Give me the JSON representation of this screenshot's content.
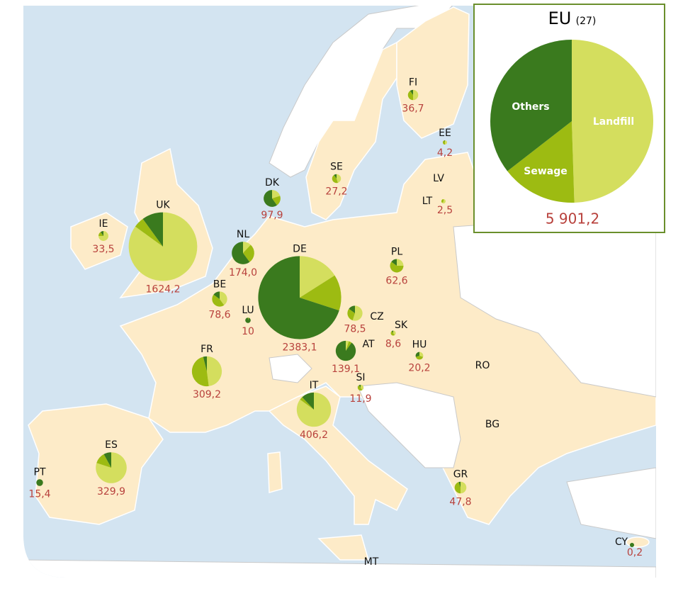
{
  "colors": [
    "#d4de5e",
    "#9dbb12",
    "#3a7a1e"
  ],
  "eu_panel": {
    "title": "EU",
    "subtitle": "(27)",
    "categories": [
      "Landfill",
      "Sewage",
      "Others"
    ],
    "shares": [
      49.5,
      15,
      35.5
    ],
    "total_label": "5 901,2"
  },
  "countries": [
    {
      "code": "FI",
      "value": 36.7,
      "value_label": "36,7",
      "shares": [
        50,
        40,
        10
      ]
    },
    {
      "code": "EE",
      "value": 4.2,
      "value_label": "4,2",
      "shares": [
        50,
        45,
        5
      ]
    },
    {
      "code": "LT",
      "value": 2.5,
      "value_label": "2,5",
      "shares": [
        60,
        40,
        0
      ]
    },
    {
      "code": "SE",
      "value": 27.2,
      "value_label": "27,2",
      "shares": [
        45,
        45,
        10
      ]
    },
    {
      "code": "DK",
      "value": 97.9,
      "value_label": "97,9",
      "shares": [
        20,
        20,
        60
      ]
    },
    {
      "code": "IE",
      "value": 33.5,
      "value_label": "33,5",
      "shares": [
        75,
        15,
        10
      ]
    },
    {
      "code": "UK",
      "value": 1624.2,
      "value_label": "1624,2",
      "shares": [
        85,
        5,
        10
      ]
    },
    {
      "code": "NL",
      "value": 174.0,
      "value_label": "174,0",
      "shares": [
        12,
        28,
        60
      ]
    },
    {
      "code": "PL",
      "value": 62.6,
      "value_label": "62,6",
      "shares": [
        25,
        60,
        15
      ]
    },
    {
      "code": "BE",
      "value": 78.6,
      "value_label": "78,6",
      "shares": [
        40,
        45,
        15
      ]
    },
    {
      "code": "DE",
      "value": 2383.1,
      "value_label": "2383,1",
      "shares": [
        16,
        14,
        70
      ]
    },
    {
      "code": "LU",
      "value": 10,
      "value_label": "10",
      "shares": [
        0,
        5,
        95
      ]
    },
    {
      "code": "CZ",
      "value": 78.5,
      "value_label": "78,5",
      "shares": [
        55,
        30,
        15
      ]
    },
    {
      "code": "SK",
      "value": 8.6,
      "value_label": "8,6",
      "shares": [
        40,
        50,
        10
      ]
    },
    {
      "code": "AT",
      "value": 139.1,
      "value_label": "139,1",
      "shares": [
        5,
        5,
        90
      ]
    },
    {
      "code": "HU",
      "value": 20.2,
      "value_label": "20,2",
      "shares": [
        30,
        40,
        30
      ]
    },
    {
      "code": "FR",
      "value": 309.2,
      "value_label": "309,2",
      "shares": [
        48,
        48,
        4
      ]
    },
    {
      "code": "SI",
      "value": 11.9,
      "value_label": "11,9",
      "shares": [
        40,
        50,
        10
      ]
    },
    {
      "code": "IT",
      "value": 406.2,
      "value_label": "406,2",
      "shares": [
        85,
        3,
        12
      ]
    },
    {
      "code": "ES",
      "value": 329.9,
      "value_label": "329,9",
      "shares": [
        80,
        12,
        8
      ]
    },
    {
      "code": "PT",
      "value": 15.4,
      "value_label": "15,4",
      "shares": [
        0,
        0,
        100
      ]
    },
    {
      "code": "GR",
      "value": 47.8,
      "value_label": "47,8",
      "shares": [
        50,
        45,
        5
      ]
    },
    {
      "code": "CY",
      "value": 0.2,
      "value_label": "0,2",
      "shares": [
        0,
        0,
        100
      ]
    }
  ],
  "labels": [
    "LV",
    "RO",
    "BG",
    "MT"
  ]
}
